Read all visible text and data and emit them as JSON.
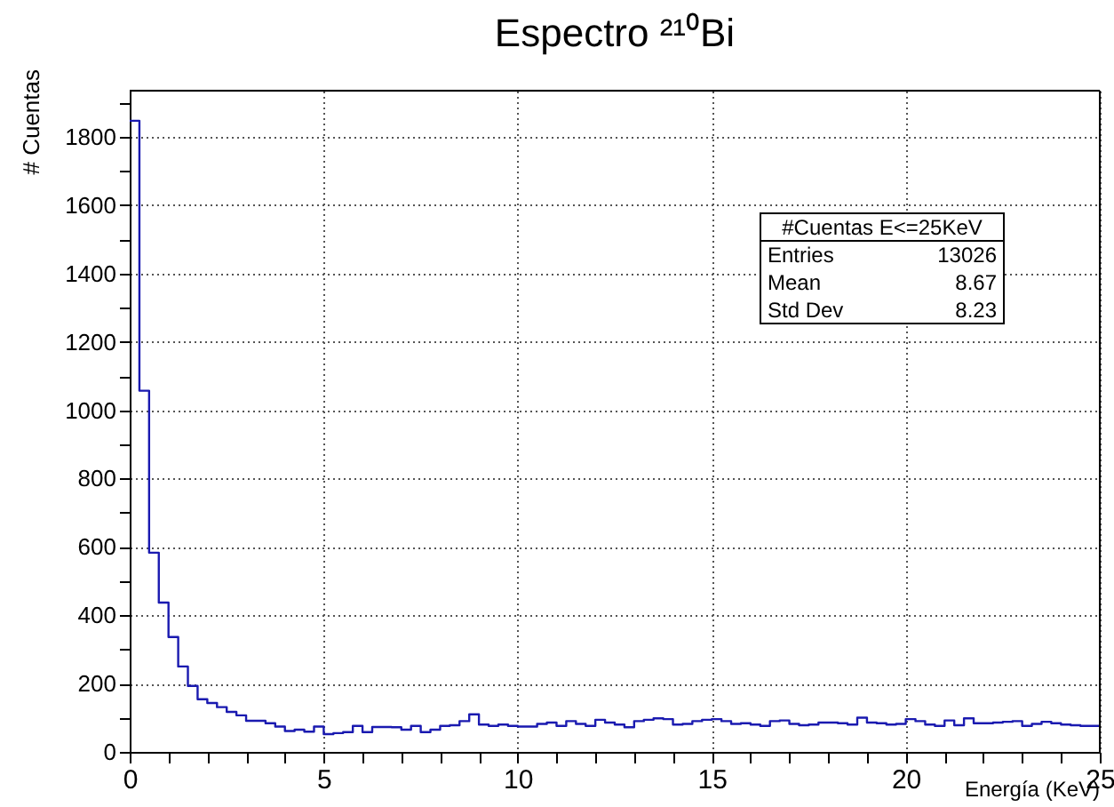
{
  "chart_data": {
    "type": "histogram",
    "title": "Espectro ²¹⁰Bi",
    "xlabel": "Energía (KeV)",
    "ylabel": "# Cuentas",
    "bins": [
      0,
      0.25,
      0.5,
      0.75,
      1,
      1.25,
      1.5,
      1.75,
      2,
      2.25,
      2.5,
      2.75,
      3,
      3.25,
      3.5,
      3.75,
      4,
      4.25,
      4.5,
      4.75,
      5,
      5.25,
      5.5,
      5.75,
      6,
      6.25,
      6.5,
      6.75,
      7,
      7.25,
      7.5,
      7.75,
      8,
      8.25,
      8.5,
      8.75,
      9,
      9.25,
      9.5,
      9.75,
      10,
      10.25,
      10.5,
      10.75,
      11,
      11.25,
      11.5,
      11.75,
      12,
      12.25,
      12.5,
      12.75,
      13,
      13.25,
      13.5,
      13.75,
      14,
      14.25,
      14.5,
      14.75,
      15,
      15.25,
      15.5,
      15.75,
      16,
      16.25,
      16.5,
      16.75,
      17,
      17.25,
      17.5,
      17.75,
      18,
      18.25,
      18.5,
      18.75,
      19,
      19.25,
      19.5,
      19.75,
      20,
      20.25,
      20.5,
      20.75,
      21,
      21.25,
      21.5,
      21.75,
      22,
      22.25,
      22.5,
      22.75,
      23,
      23.25,
      23.5,
      23.75,
      24,
      24.25,
      24.5,
      24.75,
      25
    ],
    "values": [
      1847,
      1057,
      583,
      437,
      336,
      250,
      193,
      154,
      143,
      131,
      117,
      107,
      91,
      91,
      84,
      74,
      61,
      65,
      59,
      74,
      52,
      55,
      58,
      76,
      58,
      73,
      73,
      72,
      65,
      76,
      58,
      65,
      76,
      78,
      90,
      110,
      80,
      76,
      80,
      76,
      74,
      74,
      82,
      86,
      76,
      90,
      82,
      76,
      94,
      86,
      80,
      72,
      90,
      94,
      98,
      96,
      80,
      82,
      90,
      94,
      96,
      90,
      82,
      84,
      80,
      76,
      90,
      92,
      82,
      78,
      80,
      86,
      86,
      84,
      80,
      100,
      86,
      84,
      80,
      82,
      96,
      90,
      80,
      76,
      92,
      78,
      98,
      84,
      84,
      86,
      88,
      90,
      76,
      82,
      88,
      84,
      80,
      78,
      76,
      76
    ],
    "color": "#1a1ab0",
    "xlim": [
      0,
      25
    ],
    "ylim": [
      0,
      1935
    ],
    "xticks": [
      0,
      {
        "value": 1,
        "label": null
      },
      {
        "value": 2,
        "label": null
      },
      {
        "value": 3,
        "label": null
      },
      {
        "value": 4,
        "label": null
      },
      5,
      {
        "value": 6,
        "label": null
      },
      {
        "value": 7,
        "label": null
      },
      {
        "value": 8,
        "label": null
      },
      {
        "value": 9,
        "label": null
      },
      10,
      {
        "value": 11,
        "label": null
      },
      {
        "value": 12,
        "label": null
      },
      {
        "value": 13,
        "label": null
      },
      {
        "value": 14,
        "label": null
      },
      15,
      {
        "value": 16,
        "label": null
      },
      {
        "value": 17,
        "label": null
      },
      {
        "value": 18,
        "label": null
      },
      {
        "value": 19,
        "label": null
      },
      20,
      {
        "value": 21,
        "label": null
      },
      {
        "value": 22,
        "label": null
      },
      {
        "value": 23,
        "label": null
      },
      {
        "value": 24,
        "label": null
      },
      25
    ],
    "yticks": [
      0,
      {
        "value": 100,
        "label": null
      },
      200,
      {
        "value": 300,
        "label": null
      },
      400,
      {
        "value": 500,
        "label": null
      },
      600,
      {
        "value": 700,
        "label": null
      },
      800,
      {
        "value": 900,
        "label": null
      },
      1000,
      {
        "value": 1100,
        "label": null
      },
      1200,
      {
        "value": 1300,
        "label": null
      },
      1400,
      {
        "value": 1500,
        "label": null
      },
      1600,
      {
        "value": 1700,
        "label": null
      },
      1800,
      {
        "value": 1900,
        "label": null
      }
    ],
    "grid": true,
    "annotations": [
      "#Cuentas E<=25KeV",
      "Entries",
      "13026",
      "Mean",
      "8.67",
      "Std Dev",
      "8.23"
    ]
  }
}
